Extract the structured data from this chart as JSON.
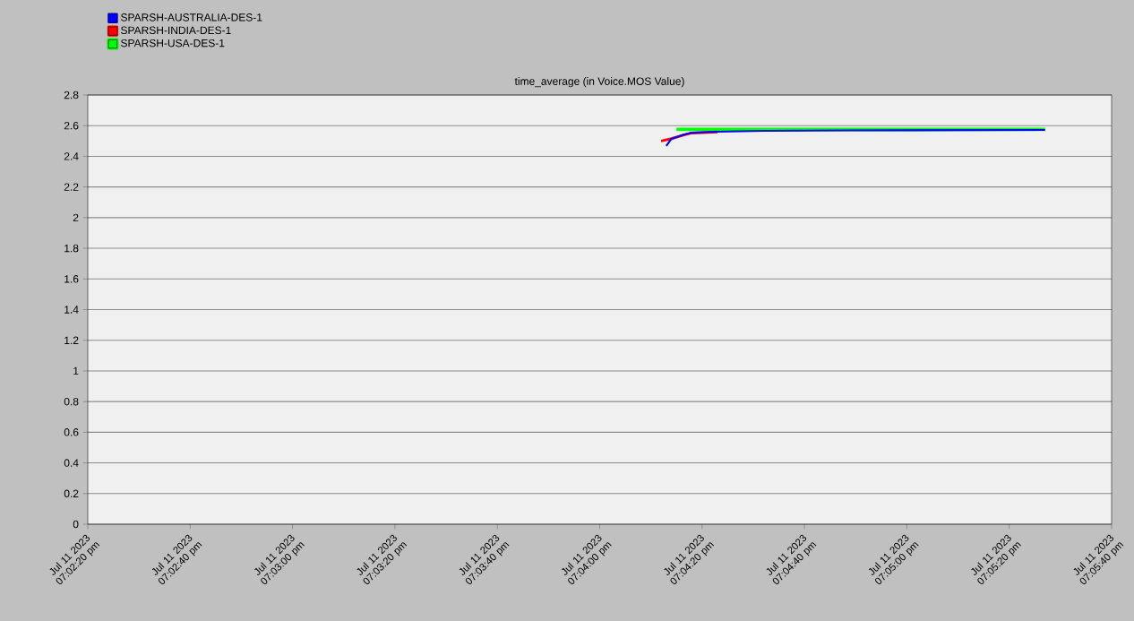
{
  "chart_data": {
    "type": "line",
    "title": "time_average (in Voice.MOS Value)",
    "xlim": [
      "2023-07-11T19:02:20",
      "2023-07-11T19:05:40"
    ],
    "xticks": [
      {
        "value": "2023-07-11T19:02:20",
        "label": "Jul 11 2023 07:02:20 pm"
      },
      {
        "value": "2023-07-11T19:02:40",
        "label": "Jul 11 2023 07:02:40 pm"
      },
      {
        "value": "2023-07-11T19:03:00",
        "label": "Jul 11 2023 07:03:00 pm"
      },
      {
        "value": "2023-07-11T19:03:20",
        "label": "Jul 11 2023 07:03:20 pm"
      },
      {
        "value": "2023-07-11T19:03:40",
        "label": "Jul 11 2023 07:03:40 pm"
      },
      {
        "value": "2023-07-11T19:04:00",
        "label": "Jul 11 2023 07:04:00 pm"
      },
      {
        "value": "2023-07-11T19:04:20",
        "label": "Jul 11 2023 07:04:20 pm"
      },
      {
        "value": "2023-07-11T19:04:40",
        "label": "Jul 11 2023 07:04:40 pm"
      },
      {
        "value": "2023-07-11T19:05:00",
        "label": "Jul 11 2023 07:05:00 pm"
      },
      {
        "value": "2023-07-11T19:05:20",
        "label": "Jul 11 2023 07:05:20 pm"
      },
      {
        "value": "2023-07-11T19:05:40",
        "label": "Jul 11 2023 07:05:40 pm"
      }
    ],
    "ylim": [
      0,
      2.8
    ],
    "yticks": [
      0,
      0.2,
      0.4,
      0.6,
      0.8,
      1,
      1.2,
      1.4,
      1.6,
      1.8,
      2,
      2.2,
      2.4,
      2.6,
      2.8
    ],
    "grid": "y",
    "legend": "top left",
    "line_style": "solid",
    "series": [
      {
        "name": "SPARSH-AUSTRALIA-DES-1",
        "color": "#0000ff",
        "x": [
          "2023-07-11T19:04:13",
          "2023-07-11T19:04:14",
          "2023-07-11T19:04:16",
          "2023-07-11T19:04:18",
          "2023-07-11T19:04:23",
          "2023-07-11T19:04:32",
          "2023-07-11T19:04:49",
          "2023-07-11T19:05:27"
        ],
        "values": [
          2.467,
          2.514,
          2.537,
          2.554,
          2.56,
          2.566,
          2.569,
          2.572
        ]
      },
      {
        "name": "SPARSH-INDIA-DES-1",
        "color": "#ff0000",
        "x": [
          "2023-07-11T19:04:12",
          "2023-07-11T19:04:14",
          "2023-07-11T19:04:16",
          "2023-07-11T19:04:18",
          "2023-07-11T19:04:23"
        ],
        "values": [
          2.5,
          2.515,
          2.535,
          2.552,
          2.559
        ]
      },
      {
        "name": "SPARSH-USA-DES-1",
        "color": "#00ff00",
        "x": [
          "2023-07-11T19:04:15",
          "2023-07-11T19:05:27"
        ],
        "values": [
          2.575,
          2.575
        ]
      }
    ]
  }
}
